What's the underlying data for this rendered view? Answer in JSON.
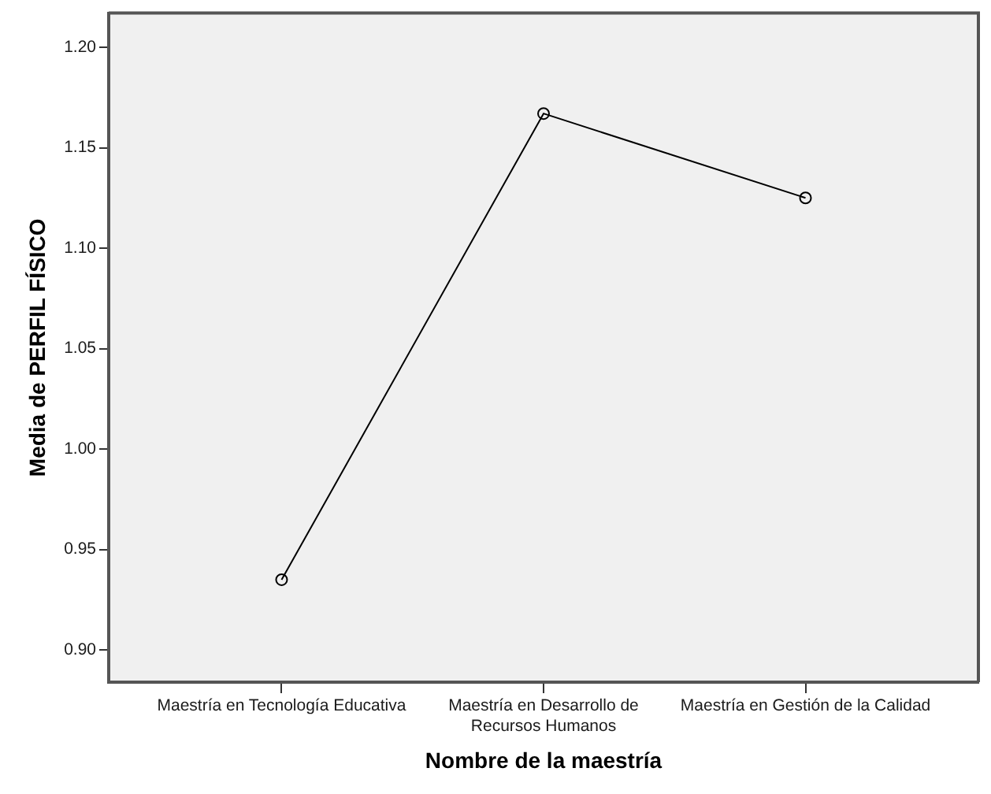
{
  "chart_data": {
    "type": "line",
    "xlabel": "Nombre de la maestría",
    "ylabel": "Media de PERFIL FÍSICO",
    "categories": [
      "Maestría en Tecnología Educativa",
      "Maestría en Desarrollo de Recursos Humanos",
      "Maestría en Gestión de la Calidad"
    ],
    "values": [
      0.935,
      1.167,
      1.125
    ],
    "color": "#000000",
    "ylim": [
      0.884,
      1.217
    ],
    "yticks": [
      {
        "value": 0.9,
        "label": "0.90"
      },
      {
        "value": 0.95,
        "label": "0.95"
      },
      {
        "value": 1.0,
        "label": "1.00"
      },
      {
        "value": 1.05,
        "label": "1.05"
      },
      {
        "value": 1.1,
        "label": "1.10"
      },
      {
        "value": 1.15,
        "label": "1.15"
      },
      {
        "value": 1.2,
        "label": "1.20"
      }
    ],
    "grid": false,
    "legend": false,
    "marker": "circle",
    "line_style": "solid"
  }
}
